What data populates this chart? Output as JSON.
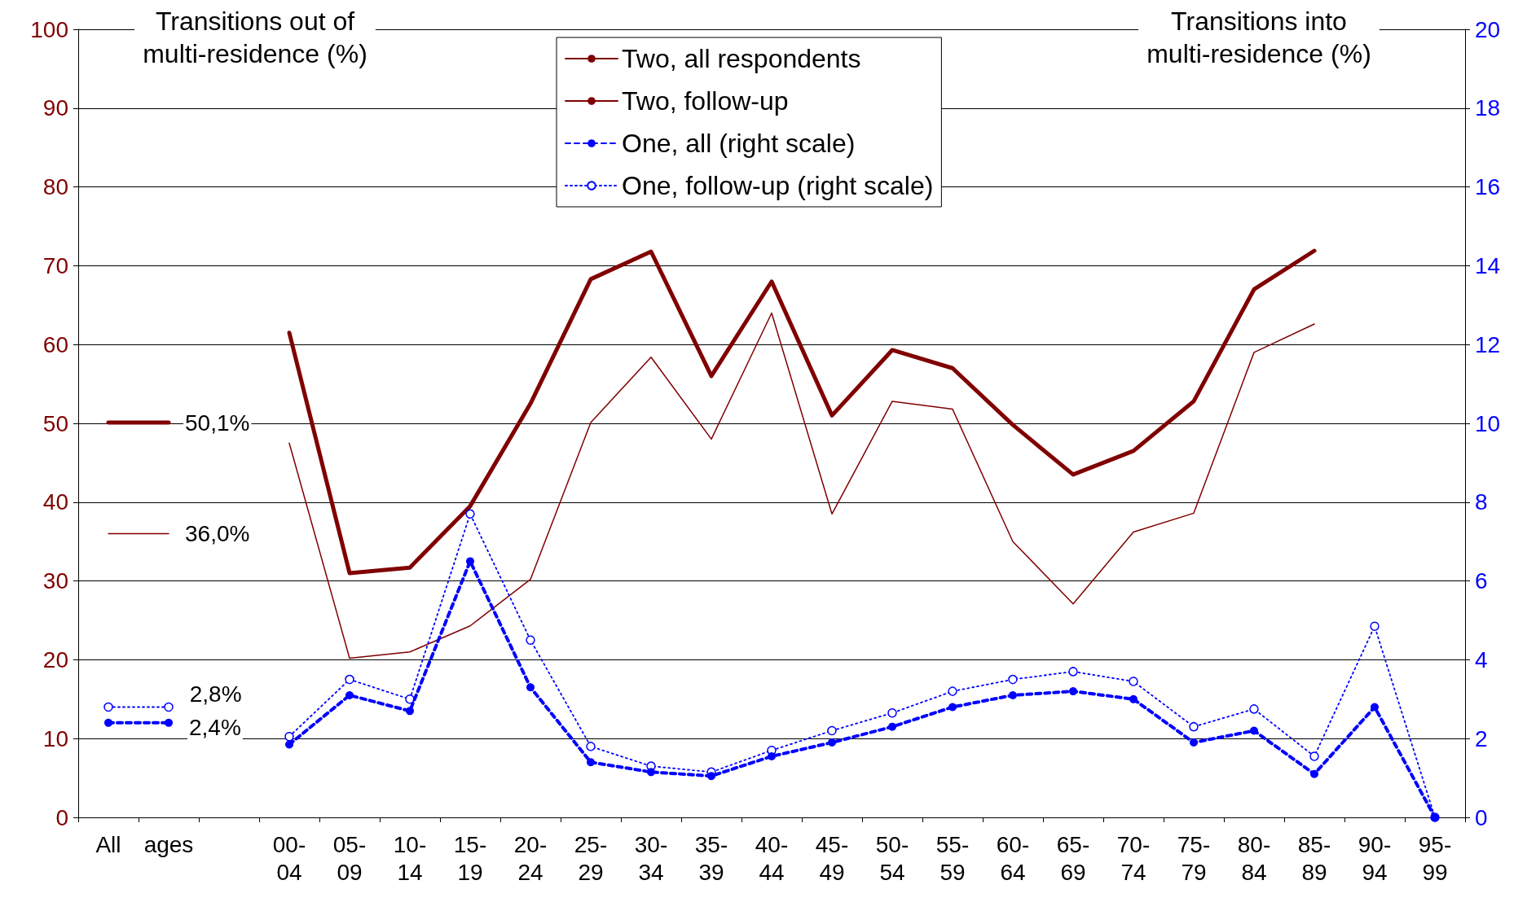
{
  "chart_data": {
    "type": "line",
    "ylabel": "Transitions out of multi-residence (%)",
    "y2label": "Transitions into multi-residence (%)",
    "categories": [
      "All",
      "ages",
      null,
      "00-04",
      "05-09",
      "10-14",
      "15-19",
      "20-24",
      "25-29",
      "30-34",
      "35-39",
      "40-44",
      "45-49",
      "50-54",
      "55-59",
      "60-64",
      "65-69",
      "70-74",
      "75-79",
      "80-84",
      "85-89",
      "90-94",
      "95-99"
    ],
    "ylim": [
      0,
      100
    ],
    "yticks": [
      0,
      10,
      20,
      30,
      40,
      50,
      60,
      70,
      80,
      90,
      100
    ],
    "y2lim": [
      0,
      20
    ],
    "y2ticks": [
      0,
      2,
      4,
      6,
      8,
      10,
      12,
      14,
      16,
      18,
      20
    ],
    "grid": "y",
    "legend": "top",
    "series": [
      {
        "name": "Two, all respondents",
        "color": "#800000",
        "line_style": "solid",
        "marker": "none",
        "values": [
          50.1,
          50.1,
          null,
          61.5,
          31,
          31.7,
          39.5,
          52.5,
          68.3,
          71.8,
          56,
          68,
          51,
          59.3,
          57,
          49.8,
          43.5,
          46.5,
          52.8,
          67,
          71.9,
          null,
          null
        ],
        "value_labels": [
          null,
          "50,1%",
          null,
          null,
          null,
          null,
          null,
          null,
          null,
          null,
          null,
          null,
          null,
          null,
          null,
          null,
          null,
          null,
          null,
          null,
          null,
          null,
          null
        ]
      },
      {
        "name": "Two, follow-up",
        "color": "#800000",
        "line_style": "solid",
        "marker": "none",
        "values": [
          36,
          36,
          null,
          47.5,
          20.2,
          21,
          24.3,
          30.2,
          50.1,
          58.4,
          48,
          64,
          38.5,
          52.8,
          51.8,
          35,
          27.1,
          36.2,
          38.6,
          59,
          62.6,
          null,
          null
        ],
        "value_labels": [
          null,
          "36,0%",
          null,
          null,
          null,
          null,
          null,
          null,
          null,
          null,
          null,
          null,
          null,
          null,
          null,
          null,
          null,
          null,
          null,
          null,
          null,
          null,
          null
        ]
      },
      {
        "name": "One, all (right scale)",
        "color": "#0000ff",
        "axis": "y2",
        "line_style": "dashed",
        "marker": "circle",
        "values": [
          2.4,
          2.4,
          null,
          1.85,
          3.1,
          2.7,
          6.5,
          3.3,
          1.4,
          1.15,
          1.05,
          1.55,
          1.9,
          2.3,
          2.8,
          3.1,
          3.2,
          3.0,
          1.9,
          2.2,
          1.1,
          2.8,
          0
        ],
        "value_labels": [
          null,
          "2,4%",
          null,
          null,
          null,
          null,
          null,
          null,
          null,
          null,
          null,
          null,
          null,
          null,
          null,
          null,
          null,
          null,
          null,
          null,
          null,
          null,
          null
        ]
      },
      {
        "name": "One, follow-up (right scale)",
        "color": "#0000ff",
        "axis": "y2",
        "line_style": "dotted",
        "marker": "circle",
        "values": [
          2.8,
          2.8,
          null,
          2.05,
          3.5,
          3.0,
          7.7,
          4.5,
          1.8,
          1.3,
          1.15,
          1.7,
          2.2,
          2.65,
          3.2,
          3.5,
          3.7,
          3.45,
          2.3,
          2.75,
          1.55,
          4.85,
          0
        ],
        "value_labels": [
          null,
          "2,8%",
          null,
          null,
          null,
          null,
          null,
          null,
          null,
          null,
          null,
          null,
          null,
          null,
          null,
          null,
          null,
          null,
          null,
          null,
          null,
          null,
          null
        ]
      }
    ]
  }
}
